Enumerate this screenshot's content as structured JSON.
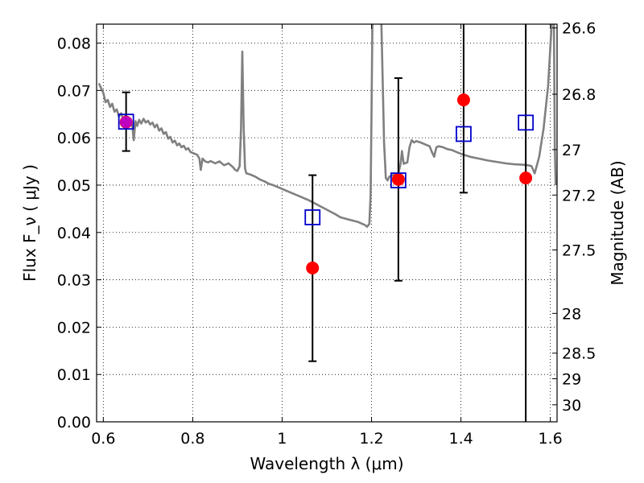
{
  "chart_data": {
    "type": "scatter",
    "xlabel": "Wavelength  λ (μm)",
    "ylabel": "Flux  F_ν  ( μJy )",
    "y2label": "Magnitude (AB)",
    "xlim": [
      0.585,
      1.615
    ],
    "ylim": [
      0.0,
      0.084
    ],
    "grid": true,
    "x_ticks": [
      {
        "value": 0.6,
        "label": "0.6"
      },
      {
        "value": 0.8,
        "label": "0.8"
      },
      {
        "value": 1.0,
        "label": "1"
      },
      {
        "value": 1.2,
        "label": "1.2"
      },
      {
        "value": 1.4,
        "label": "1.4"
      },
      {
        "value": 1.6,
        "label": "1.6"
      }
    ],
    "y_ticks": [
      {
        "value": 0.0,
        "label": "0.00"
      },
      {
        "value": 0.01,
        "label": "0.01"
      },
      {
        "value": 0.02,
        "label": "0.02"
      },
      {
        "value": 0.03,
        "label": "0.03"
      },
      {
        "value": 0.04,
        "label": "0.04"
      },
      {
        "value": 0.05,
        "label": "0.05"
      },
      {
        "value": 0.06,
        "label": "0.06"
      },
      {
        "value": 0.07,
        "label": "0.07"
      },
      {
        "value": 0.08,
        "label": "0.08"
      }
    ],
    "y2_ticks": [
      {
        "flux": 0.0832,
        "label": "26.6"
      },
      {
        "flux": 0.0692,
        "label": "26.8"
      },
      {
        "flux": 0.0575,
        "label": "27"
      },
      {
        "flux": 0.0479,
        "label": "27.2"
      },
      {
        "flux": 0.0363,
        "label": "27.5"
      },
      {
        "flux": 0.0229,
        "label": "28"
      },
      {
        "flux": 0.0145,
        "label": "28.5"
      },
      {
        "flux": 0.0091,
        "label": "29"
      },
      {
        "flux": 0.0036,
        "label": "30"
      }
    ],
    "model_spectrum": {
      "color": "#808080",
      "points": [
        [
          0.59,
          0.0715
        ],
        [
          0.595,
          0.0705
        ],
        [
          0.6,
          0.0695
        ],
        [
          0.605,
          0.0675
        ],
        [
          0.61,
          0.068
        ],
        [
          0.615,
          0.0665
        ],
        [
          0.62,
          0.0672
        ],
        [
          0.625,
          0.0655
        ],
        [
          0.63,
          0.066
        ],
        [
          0.635,
          0.0645
        ],
        [
          0.64,
          0.0652
        ],
        [
          0.645,
          0.0638
        ],
        [
          0.65,
          0.0648
        ],
        [
          0.655,
          0.064
        ],
        [
          0.66,
          0.0635
        ],
        [
          0.665,
          0.0625
        ],
        [
          0.668,
          0.0595
        ],
        [
          0.672,
          0.0635
        ],
        [
          0.676,
          0.0625
        ],
        [
          0.68,
          0.0638
        ],
        [
          0.685,
          0.063
        ],
        [
          0.69,
          0.064
        ],
        [
          0.695,
          0.0632
        ],
        [
          0.7,
          0.0636
        ],
        [
          0.705,
          0.0628
        ],
        [
          0.71,
          0.0632
        ],
        [
          0.715,
          0.0622
        ],
        [
          0.72,
          0.0628
        ],
        [
          0.725,
          0.0615
        ],
        [
          0.73,
          0.062
        ],
        [
          0.735,
          0.0608
        ],
        [
          0.74,
          0.0612
        ],
        [
          0.745,
          0.0598
        ],
        [
          0.75,
          0.0602
        ],
        [
          0.755,
          0.059
        ],
        [
          0.76,
          0.0594
        ],
        [
          0.765,
          0.0584
        ],
        [
          0.77,
          0.0588
        ],
        [
          0.775,
          0.058
        ],
        [
          0.78,
          0.0583
        ],
        [
          0.785,
          0.0575
        ],
        [
          0.79,
          0.0578
        ],
        [
          0.795,
          0.057
        ],
        [
          0.8,
          0.0568
        ],
        [
          0.81,
          0.0564
        ],
        [
          0.815,
          0.0556
        ],
        [
          0.818,
          0.0532
        ],
        [
          0.822,
          0.0556
        ],
        [
          0.828,
          0.055
        ],
        [
          0.835,
          0.0548
        ],
        [
          0.84,
          0.0551
        ],
        [
          0.85,
          0.0546
        ],
        [
          0.86,
          0.055
        ],
        [
          0.87,
          0.0542
        ],
        [
          0.88,
          0.0546
        ],
        [
          0.89,
          0.0538
        ],
        [
          0.895,
          0.0532
        ],
        [
          0.9,
          0.053
        ],
        [
          0.905,
          0.054
        ],
        [
          0.908,
          0.062
        ],
        [
          0.911,
          0.0782
        ],
        [
          0.914,
          0.062
        ],
        [
          0.917,
          0.0535
        ],
        [
          0.92,
          0.0525
        ],
        [
          0.93,
          0.0522
        ],
        [
          0.94,
          0.0518
        ],
        [
          0.95,
          0.0512
        ],
        [
          0.96,
          0.0508
        ],
        [
          0.97,
          0.0503
        ],
        [
          0.98,
          0.05
        ],
        [
          0.99,
          0.0496
        ],
        [
          1.0,
          0.0492
        ],
        [
          1.02,
          0.0484
        ],
        [
          1.04,
          0.0476
        ],
        [
          1.06,
          0.0468
        ],
        [
          1.08,
          0.0458
        ],
        [
          1.1,
          0.0448
        ],
        [
          1.12,
          0.0438
        ],
        [
          1.13,
          0.0432
        ],
        [
          1.15,
          0.0427
        ],
        [
          1.17,
          0.0422
        ],
        [
          1.185,
          0.0416
        ],
        [
          1.19,
          0.0412
        ],
        [
          1.195,
          0.0418
        ],
        [
          1.198,
          0.048
        ],
        [
          1.2,
          0.065
        ],
        [
          1.202,
          0.084
        ]
      ],
      "points2": [
        [
          1.222,
          0.084
        ],
        [
          1.225,
          0.072
        ],
        [
          1.228,
          0.059
        ],
        [
          1.232,
          0.0515
        ],
        [
          1.236,
          0.051
        ],
        [
          1.24,
          0.0518
        ],
        [
          1.25,
          0.0522
        ],
        [
          1.26,
          0.0525
        ],
        [
          1.265,
          0.0545
        ],
        [
          1.268,
          0.0572
        ],
        [
          1.272,
          0.0545
        ],
        [
          1.28,
          0.0548
        ],
        [
          1.285,
          0.058
        ],
        [
          1.29,
          0.0595
        ],
        [
          1.295,
          0.059
        ],
        [
          1.3,
          0.0593
        ],
        [
          1.31,
          0.059
        ],
        [
          1.32,
          0.0586
        ],
        [
          1.33,
          0.0582
        ],
        [
          1.335,
          0.057
        ],
        [
          1.34,
          0.056
        ],
        [
          1.345,
          0.058
        ],
        [
          1.35,
          0.0582
        ],
        [
          1.36,
          0.058
        ],
        [
          1.37,
          0.0576
        ],
        [
          1.38,
          0.0574
        ],
        [
          1.39,
          0.057
        ],
        [
          1.4,
          0.0566
        ],
        [
          1.42,
          0.056
        ],
        [
          1.44,
          0.0556
        ],
        [
          1.46,
          0.0552
        ],
        [
          1.48,
          0.0549
        ],
        [
          1.5,
          0.0546
        ],
        [
          1.52,
          0.0544
        ],
        [
          1.54,
          0.0543
        ],
        [
          1.55,
          0.0542
        ],
        [
          1.558,
          0.054
        ],
        [
          1.565,
          0.0525
        ],
        [
          1.575,
          0.056
        ],
        [
          1.585,
          0.062
        ],
        [
          1.595,
          0.071
        ],
        [
          1.603,
          0.084
        ]
      ],
      "points3": [
        [
          1.608,
          0.084
        ],
        [
          1.609,
          0.07
        ],
        [
          1.61,
          0.058
        ],
        [
          1.612,
          0.05
        ]
      ]
    },
    "observed": {
      "color": "#ff0000",
      "points": [
        {
          "x": 0.651,
          "y": 0.0633,
          "err_lo": 0.0572,
          "err_hi": 0.0696
        },
        {
          "x": 1.068,
          "y": 0.0325,
          "err_lo": 0.0128,
          "err_hi": 0.0521
        },
        {
          "x": 1.26,
          "y": 0.0512,
          "err_lo": 0.0298,
          "err_hi": 0.0726
        },
        {
          "x": 1.406,
          "y": 0.068,
          "err_lo": 0.0484,
          "err_hi": 0.084
        },
        {
          "x": 1.545,
          "y": 0.0515,
          "err_lo": 0.0,
          "err_hi": 0.084
        }
      ]
    },
    "model_photometry": {
      "color": "#0000cc",
      "points": [
        {
          "x": 0.651,
          "y": 0.0634
        },
        {
          "x": 1.068,
          "y": 0.0432
        },
        {
          "x": 1.26,
          "y": 0.051
        },
        {
          "x": 1.406,
          "y": 0.0608
        },
        {
          "x": 1.545,
          "y": 0.0632
        }
      ]
    },
    "highlight_marker_color": "#bf00bf"
  }
}
